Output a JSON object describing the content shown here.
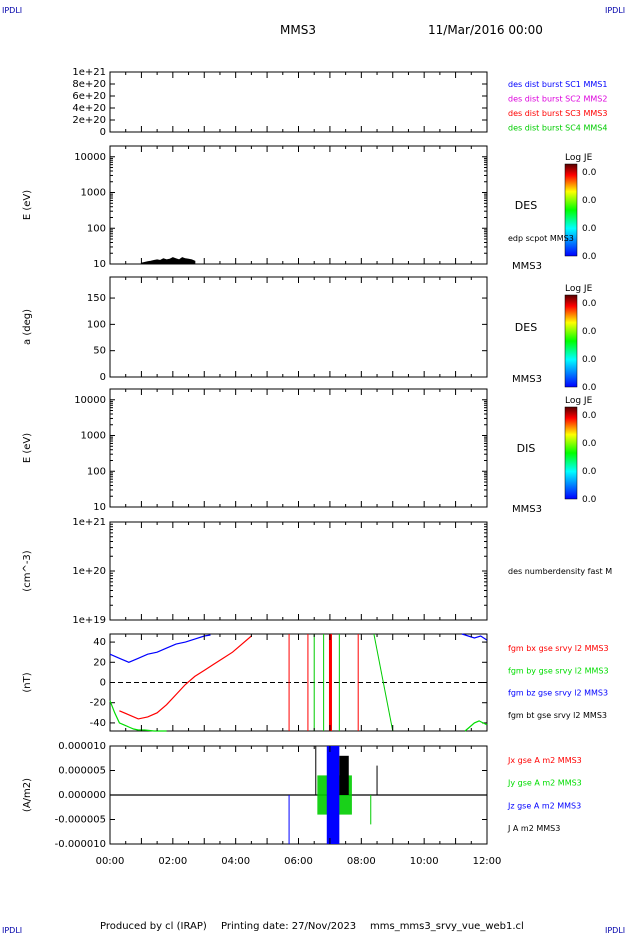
{
  "header": {
    "corner_label": "IPDLI",
    "spacecraft": "MMS3",
    "datetime": "11/Mar/2016 00:00"
  },
  "footer": {
    "produced_by": "Produced by cl (IRAP)",
    "printing_date": "Printing date: 27/Nov/2023",
    "file": "mms_mms3_srvy_vue_web1.cl"
  },
  "time_axis": {
    "range_hours": [
      0,
      12
    ],
    "tick_labels": [
      "00:00",
      "02:00",
      "04:00",
      "06:00",
      "08:00",
      "10:00",
      "12:00"
    ]
  },
  "colors": {
    "sc1": "#0000ff",
    "sc2": "#dd00dd",
    "sc3": "#ff0000",
    "sc4": "#00cc00",
    "bx": "#ff0000",
    "by": "#00dd00",
    "bz": "#0000ff",
    "bt": "#000000"
  },
  "colorbar": {
    "title": "Log JE",
    "tick_labels": [
      "0.0",
      "0.0",
      "0.0",
      "0.0"
    ]
  },
  "chart_data": [
    {
      "type": "line",
      "panel": "burst",
      "ylabel": "",
      "ylim": [
        0,
        1e+21
      ],
      "tick_labels": [
        "0",
        "2e+20",
        "4e+20",
        "6e+20",
        "8e+20",
        "1e+21"
      ],
      "tick_values": [
        0,
        2e+20,
        4e+20,
        6e+20,
        8e+20,
        1e+21
      ],
      "zero_line": true,
      "legend": [
        {
          "text": "des dist burst SC1 MMS1",
          "color": "#0000ff"
        },
        {
          "text": "des dist burst SC2 MMS2",
          "color": "#dd00dd"
        },
        {
          "text": "des dist burst SC3 MMS3",
          "color": "#ff0000"
        },
        {
          "text": "des dist burst SC4 MMS4",
          "color": "#00cc00"
        }
      ]
    },
    {
      "type": "heatmap",
      "panel": "des-energy",
      "ylabel": "E (eV)",
      "scale": "log",
      "ylim": [
        10,
        20000
      ],
      "tick_labels": [
        "10",
        "100",
        "1000",
        "10000"
      ],
      "tick_values": [
        10,
        100,
        1000,
        10000
      ],
      "instrument": "DES",
      "side_label": "MMS3",
      "overlay_label": "edp scpot MMS3",
      "overlay": {
        "x": [
          1.0,
          1.1,
          1.2,
          1.3,
          1.4,
          1.5,
          1.6,
          1.7,
          1.8,
          1.9,
          2.0,
          2.1,
          2.2,
          2.3,
          2.4,
          2.5,
          2.6,
          2.7
        ],
        "y": [
          10.5,
          11,
          11.5,
          12,
          12.5,
          13,
          12.5,
          14,
          13,
          13.5,
          15,
          14,
          13,
          15,
          14,
          13.5,
          13,
          12
        ]
      }
    },
    {
      "type": "heatmap",
      "panel": "des-pitch",
      "ylabel": "a (deg)",
      "scale": "linear",
      "ylim": [
        0,
        190
      ],
      "tick_labels": [
        "0",
        "50",
        "100",
        "150"
      ],
      "tick_values": [
        0,
        50,
        100,
        150
      ],
      "instrument": "DES",
      "side_label": "MMS3"
    },
    {
      "type": "heatmap",
      "panel": "dis-energy",
      "ylabel": "E (eV)",
      "scale": "log",
      "ylim": [
        10,
        20000
      ],
      "tick_labels": [
        "10",
        "100",
        "1000",
        "10000"
      ],
      "tick_values": [
        10,
        100,
        1000,
        10000
      ],
      "instrument": "DIS",
      "side_label": "MMS3"
    },
    {
      "type": "line",
      "panel": "density",
      "ylabel": "(cm^-3)",
      "scale": "log",
      "ylim": [
        1e+19,
        1e+21
      ],
      "tick_labels": [
        "1e+19",
        "1e+20",
        "1e+21"
      ],
      "tick_values": [
        1e+19,
        1e+20,
        1e+21
      ],
      "legend": [
        {
          "text": "des numberdensity fast M",
          "color": "#000000"
        }
      ]
    },
    {
      "type": "line",
      "panel": "fgm",
      "ylabel": "(nT)",
      "ylim": [
        -48,
        48
      ],
      "tick_labels": [
        "-40",
        "-20",
        "0",
        "20",
        "40"
      ],
      "tick_values": [
        -40,
        -20,
        0,
        20,
        40
      ],
      "zero_line": true,
      "legend": [
        {
          "text": "fgm bx gse srvy l2 MMS3",
          "color": "#ff0000"
        },
        {
          "text": "fgm by gse srvy l2 MMS3",
          "color": "#00dd00"
        },
        {
          "text": "fgm bz gse srvy l2 MMS3",
          "color": "#0000ff"
        },
        {
          "text": "fgm bt gse srvy l2 MMS3",
          "color": "#000000"
        }
      ],
      "series": [
        {
          "name": "fgm bx gse srvy l2 MMS3",
          "color": "#ff0000",
          "x": [
            0.3,
            0.6,
            0.9,
            1.2,
            1.5,
            1.8,
            2.1,
            2.4,
            2.7,
            3.0,
            3.3,
            3.6,
            3.9,
            4.2,
            4.5
          ],
          "y": [
            -28,
            -32,
            -36,
            -34,
            -30,
            -22,
            -12,
            -2,
            6,
            12,
            18,
            24,
            30,
            38,
            46
          ]
        },
        {
          "name": "fgm by gse srvy l2 MMS3",
          "color": "#00dd00",
          "x": [
            0.0,
            0.15,
            0.3,
            0.45,
            0.6,
            0.75,
            0.9,
            1.1,
            1.4,
            1.8
          ],
          "y": [
            -18,
            -30,
            -40,
            -42,
            -44,
            -46,
            -47,
            -47,
            -48,
            -48
          ]
        },
        {
          "name": "fgm bz gse srvy l2 MMS3",
          "color": "#0000ff",
          "x": [
            0.0,
            0.3,
            0.6,
            0.9,
            1.2,
            1.5,
            1.8,
            2.1,
            2.4,
            2.7,
            3.0,
            3.2
          ],
          "y": [
            28,
            24,
            20,
            24,
            28,
            30,
            34,
            38,
            40,
            43,
            46,
            47
          ]
        },
        {
          "name": "fgm by gse srvy l2 MMS3 (end)",
          "color": "#00dd00",
          "x": [
            11.3,
            11.45,
            11.6,
            11.75,
            12.0
          ],
          "y": [
            -48,
            -44,
            -40,
            -38,
            -42
          ]
        },
        {
          "name": "fgm bz gse srvy l2 MMS3 (end)",
          "color": "#0000ff",
          "x": [
            11.2,
            11.4,
            11.6,
            11.8,
            12.0
          ],
          "y": [
            48,
            46,
            44,
            46,
            42
          ]
        }
      ]
    },
    {
      "type": "line",
      "panel": "current",
      "ylabel": "(A/m2)",
      "ylim": [
        -1e-05,
        1e-05
      ],
      "tick_labels": [
        "-0.000010",
        "-0.000005",
        "0.000000",
        "0.000005",
        "0.000010"
      ],
      "tick_values": [
        -1e-05,
        -5e-06,
        0,
        5e-06,
        1e-05
      ],
      "legend": [
        {
          "text": "Jx gse A m2 MMS3",
          "color": "#ff0000"
        },
        {
          "text": "Jy gse A m2 MMS3",
          "color": "#00dd00"
        },
        {
          "text": "Jz gse A m2 MMS3",
          "color": "#0000ff"
        },
        {
          "text": "J A m2 MMS3",
          "color": "#000000"
        }
      ]
    }
  ]
}
